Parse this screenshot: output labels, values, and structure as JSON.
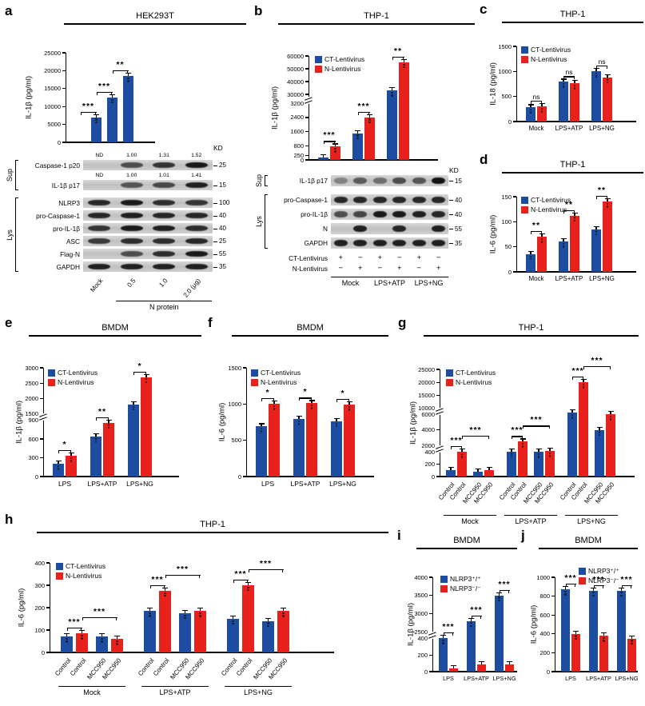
{
  "colors": {
    "blue": "#1c4da0",
    "red": "#e8211d"
  },
  "panels": {
    "a": {
      "letter": "a",
      "title": "HEK293T",
      "blot": {
        "kd": "KD",
        "sections": [
          {
            "label": "Sup",
            "rows": [
              0,
              1
            ]
          },
          {
            "label": "Lys",
            "rows": [
              2,
              7
            ]
          }
        ],
        "rows": [
          {
            "label": "Caspase-1 p20",
            "marker": "25",
            "numbers": [
              "ND",
              "1.00",
              "1.31",
              "1.52"
            ],
            "bands": [
              0,
              0.55,
              0.75,
              0.95
            ]
          },
          {
            "label": "IL-1β p17",
            "marker": "15",
            "numbers": [
              "ND",
              "1.00",
              "1.01",
              "1.41"
            ],
            "bands": [
              0,
              0.5,
              0.6,
              0.9
            ]
          },
          {
            "label": "NLRP3",
            "marker": "100",
            "bands": [
              0.85,
              0.95,
              0.8,
              0.75
            ]
          },
          {
            "label": "pro-Caspase-1",
            "marker": "40",
            "bands": [
              0.85,
              0.9,
              0.85,
              0.85
            ]
          },
          {
            "label": "pro-IL-1β",
            "marker": "40",
            "bands": [
              0.75,
              0.95,
              0.9,
              0.8
            ]
          },
          {
            "label": "ASC",
            "marker": "25",
            "bands": [
              0.7,
              0.8,
              0.8,
              0.85
            ]
          },
          {
            "label": "Flag-N",
            "marker": "55",
            "bands": [
              0,
              0.55,
              0.8,
              0.95
            ]
          },
          {
            "label": "GAPDH",
            "marker": "35",
            "bands": [
              0.9,
              0.9,
              0.9,
              0.9
            ]
          }
        ],
        "lane_labels": [
          "Mock",
          "0.5",
          "1.0",
          "2.0 (μg)"
        ],
        "bottom_bracket": {
          "label": "N protein",
          "from": 1,
          "to": 3
        }
      }
    },
    "b": {
      "letter": "b",
      "title": "THP-1",
      "blot": {
        "kd": "KD",
        "sections": [
          {
            "label": "Sup",
            "rows": [
              0,
              0
            ]
          },
          {
            "label": "Lys",
            "rows": [
              1,
              4
            ]
          }
        ],
        "rows": [
          {
            "label": "IL-1β p17",
            "marker": "15",
            "bands": [
              0.15,
              0.45,
              0.3,
              0.55,
              0.5,
              1.0
            ]
          },
          {
            "label": "pro-Caspase-1",
            "marker": "40",
            "bands": [
              0.85,
              0.85,
              0.85,
              0.85,
              0.85,
              0.85
            ]
          },
          {
            "label": "pro-IL-1β",
            "marker": "40",
            "bands": [
              0.55,
              0.6,
              0.95,
              0.95,
              0.9,
              0.85
            ]
          },
          {
            "label": "N",
            "marker": "55",
            "bands": [
              0,
              0.9,
              0,
              0.85,
              0,
              0.9
            ]
          },
          {
            "label": "GAPDH",
            "marker": "35",
            "bands": [
              0.9,
              0.9,
              0.9,
              0.9,
              0.9,
              0.9
            ]
          }
        ],
        "pm_rows": [
          {
            "label": "CT-Lentivirus",
            "values": [
              "+",
              "−",
              "+",
              "−",
              "+",
              "−"
            ]
          },
          {
            "label": "N-Lentivirus",
            "values": [
              "−",
              "+",
              "−",
              "+",
              "−",
              "+"
            ]
          }
        ],
        "group_labels": [
          "Mock",
          "LPS+ATP",
          "LPS+NG"
        ]
      }
    },
    "c": {
      "letter": "c",
      "title": "THP-1"
    },
    "d": {
      "letter": "d",
      "title": "THP-1"
    },
    "e": {
      "letter": "e",
      "title": "BMDM"
    },
    "f": {
      "letter": "f",
      "title": "BMDM"
    },
    "g": {
      "letter": "g",
      "title": "THP-1"
    },
    "h": {
      "letter": "h",
      "title": "THP-1"
    },
    "i": {
      "letter": "i",
      "title": "BMDM"
    },
    "j": {
      "letter": "j",
      "title": "BMDM"
    }
  },
  "chart_data": [
    {
      "id": "a",
      "type": "bar",
      "title": "HEK293T",
      "ylabel": "IL-1β (pg/ml)",
      "categories": [
        "Mock",
        "0.5",
        "1.0",
        "2.0"
      ],
      "series": [
        {
          "name": "N protein",
          "color": "blue",
          "values": [
            0,
            7000,
            12500,
            18500
          ]
        }
      ],
      "ticks": [
        0,
        5000,
        10000,
        15000,
        20000,
        25000
      ],
      "segments": [
        {
          "min": 0,
          "max": 25000,
          "frac": 1
        }
      ],
      "sig": [
        {
          "bars": [
            0,
            1
          ],
          "label": "***"
        },
        {
          "bars": [
            1,
            2
          ],
          "label": "***"
        },
        {
          "bars": [
            2,
            3
          ],
          "label": "**"
        }
      ]
    },
    {
      "id": "b",
      "type": "bar",
      "title": "THP-1",
      "ylabel": "IL-1β (pg/ml)",
      "categories": [
        "Mock",
        "LPS+ATP",
        "LPS+NG"
      ],
      "series": [
        {
          "name": "CT-Lentivirus",
          "color": "blue",
          "values": [
            120,
            1500,
            33000
          ]
        },
        {
          "name": "N-Lentivirus",
          "color": "red",
          "values": [
            750,
            2400,
            55000
          ]
        }
      ],
      "ticks": [
        0,
        250,
        800,
        1600,
        2400,
        3200,
        30000,
        40000,
        50000,
        60000
      ],
      "segments": [
        {
          "min": 0,
          "max": 3200,
          "frac": 0.58
        },
        {
          "min": 28000,
          "max": 60000,
          "frac": 0.42
        }
      ],
      "sig": [
        {
          "bars": [
            0,
            1
          ],
          "label": "***"
        },
        {
          "bars": [
            2,
            3
          ],
          "label": "***"
        },
        {
          "bars": [
            4,
            5
          ],
          "label": "**"
        }
      ]
    },
    {
      "id": "c",
      "type": "bar",
      "title": "THP-1",
      "ylabel": "IL-18 (pg/ml)",
      "categories": [
        "Mock",
        "LPS+ATP",
        "LPS+NG"
      ],
      "series": [
        {
          "name": "CT-Lentivirus",
          "color": "blue",
          "values": [
            280,
            790,
            1000
          ]
        },
        {
          "name": "N-Lentivirus",
          "color": "red",
          "values": [
            300,
            760,
            880
          ]
        }
      ],
      "ticks": [
        0,
        500,
        1000,
        1500
      ],
      "segments": [
        {
          "min": 0,
          "max": 1500,
          "frac": 1
        }
      ],
      "sig": [
        {
          "bars": [
            0,
            1
          ],
          "label": "ns"
        },
        {
          "bars": [
            2,
            3
          ],
          "label": "ns"
        },
        {
          "bars": [
            4,
            5
          ],
          "label": "ns"
        }
      ]
    },
    {
      "id": "d",
      "type": "bar",
      "title": "THP-1",
      "ylabel": "IL-6 (pg/ml)",
      "categories": [
        "Mock",
        "LPS+ATP",
        "LPS+NG"
      ],
      "series": [
        {
          "name": "CT-Lentivirus",
          "color": "blue",
          "values": [
            35,
            60,
            85
          ]
        },
        {
          "name": "N-Lentivirus",
          "color": "red",
          "values": [
            70,
            112,
            140
          ]
        }
      ],
      "ticks": [
        0,
        50,
        100,
        150
      ],
      "segments": [
        {
          "min": 0,
          "max": 150,
          "frac": 1
        }
      ],
      "sig": [
        {
          "bars": [
            0,
            1
          ],
          "label": "**"
        },
        {
          "bars": [
            2,
            3
          ],
          "label": "**"
        },
        {
          "bars": [
            4,
            5
          ],
          "label": "**"
        }
      ]
    },
    {
      "id": "e",
      "type": "bar",
      "title": "BMDM",
      "ylabel": "IL-1β (pg/ml)",
      "categories": [
        "LPS",
        "LPS+ATP",
        "LPS+NG"
      ],
      "series": [
        {
          "name": "CT-Lentivirus",
          "color": "blue",
          "values": [
            200,
            640,
            1800
          ]
        },
        {
          "name": "N-Lentivirus",
          "color": "red",
          "values": [
            330,
            860,
            2700
          ]
        }
      ],
      "ticks": [
        0,
        300,
        600,
        900,
        1500,
        2000,
        2500,
        3000
      ],
      "segments": [
        {
          "min": 0,
          "max": 900,
          "frac": 0.55
        },
        {
          "min": 1500,
          "max": 3000,
          "frac": 0.45
        }
      ],
      "sig": [
        {
          "bars": [
            0,
            1
          ],
          "label": "*"
        },
        {
          "bars": [
            2,
            3
          ],
          "label": "**"
        },
        {
          "bars": [
            4,
            5
          ],
          "label": "*"
        }
      ]
    },
    {
      "id": "f",
      "type": "bar",
      "title": "BMDM",
      "ylabel": "IL-6 (pg/ml)",
      "categories": [
        "LPS",
        "LPS+ATP",
        "LPS+NG"
      ],
      "series": [
        {
          "name": "CT-Lentivirus",
          "color": "blue",
          "values": [
            690,
            790,
            760
          ]
        },
        {
          "name": "N-Lentivirus",
          "color": "red",
          "values": [
            1000,
            1010,
            990
          ]
        }
      ],
      "ticks": [
        0,
        500,
        1000,
        1500
      ],
      "segments": [
        {
          "min": 0,
          "max": 1500,
          "frac": 1
        }
      ],
      "sig": [
        {
          "bars": [
            0,
            1
          ],
          "label": "*"
        },
        {
          "bars": [
            2,
            3
          ],
          "label": "*"
        },
        {
          "bars": [
            4,
            5
          ],
          "label": "*"
        }
      ]
    },
    {
      "id": "g",
      "type": "bar",
      "title": "THP-1",
      "ylabel": "IL-1β (pg/ml)",
      "categories": [
        {
          "label": "Control",
          "block": 0
        },
        {
          "label": "MCC950",
          "block": 0
        },
        {
          "label": "Control",
          "block": 1
        },
        {
          "label": "MCC950",
          "block": 1
        },
        {
          "label": "Control",
          "block": 2
        },
        {
          "label": "MCC950",
          "block": 2
        }
      ],
      "blocks": [
        "Mock",
        "LPS+ATP",
        "LPS+NG"
      ],
      "series": [
        {
          "name": "CT-Lentivirus",
          "color": "blue",
          "values": [
            100,
            80,
            500,
            400,
            7000,
            4000
          ]
        },
        {
          "name": "N-Lentivirus",
          "color": "red",
          "values": [
            400,
            100,
            2500,
            600,
            20000,
            6000
          ]
        }
      ],
      "ticks": [
        0,
        200,
        400,
        2000,
        4000,
        6000,
        10000,
        15000,
        20000,
        25000
      ],
      "segments": [
        {
          "min": 0,
          "max": 400,
          "frac": 0.26
        },
        {
          "min": 2000,
          "max": 6000,
          "frac": 0.33
        },
        {
          "min": 10000,
          "max": 25000,
          "frac": 0.41
        }
      ],
      "sig": [
        {
          "bars": [
            0,
            1
          ],
          "label": "***"
        },
        {
          "bars": [
            1,
            3
          ],
          "label": "***",
          "row": 1
        },
        {
          "bars": [
            4,
            5
          ],
          "label": "***"
        },
        {
          "bars": [
            5,
            7
          ],
          "label": "***",
          "row": 1
        },
        {
          "bars": [
            8,
            9
          ],
          "label": "***"
        },
        {
          "bars": [
            9,
            11
          ],
          "label": "***",
          "row": 1
        }
      ]
    },
    {
      "id": "h",
      "type": "bar",
      "title": "THP-1",
      "ylabel": "IL-6 (pg/ml)",
      "categories": [
        {
          "label": "Control",
          "block": 0
        },
        {
          "label": "MCC950",
          "block": 0
        },
        {
          "label": "Control",
          "block": 1
        },
        {
          "label": "MCC950",
          "block": 1
        },
        {
          "label": "Control",
          "block": 2
        },
        {
          "label": "MCC950",
          "block": 2
        }
      ],
      "blocks": [
        "Mock",
        "LPS+ATP",
        "LPS+NG"
      ],
      "series": [
        {
          "name": "CT-Lentivirus",
          "color": "blue",
          "values": [
            70,
            70,
            185,
            175,
            150,
            140
          ]
        },
        {
          "name": "N-Lentivirus",
          "color": "red",
          "values": [
            85,
            60,
            275,
            185,
            300,
            185
          ]
        }
      ],
      "ticks": [
        0,
        100,
        200,
        300,
        400
      ],
      "segments": [
        {
          "min": 0,
          "max": 400,
          "frac": 1
        }
      ],
      "sig": [
        {
          "bars": [
            0,
            1
          ],
          "label": "***"
        },
        {
          "bars": [
            1,
            3
          ],
          "label": "***",
          "row": 1
        },
        {
          "bars": [
            4,
            5
          ],
          "label": "***"
        },
        {
          "bars": [
            5,
            7
          ],
          "label": "***",
          "row": 1
        },
        {
          "bars": [
            8,
            9
          ],
          "label": "***"
        },
        {
          "bars": [
            9,
            11
          ],
          "label": "***",
          "row": 1
        }
      ]
    },
    {
      "id": "i",
      "type": "bar",
      "title": "BMDM",
      "ylabel": "IL-1β (pg/ml)",
      "categories": [
        "LPS",
        "LPS+ATP",
        "LPS+NG"
      ],
      "series": [
        {
          "name": "NLRP3⁺/⁺",
          "color": "blue",
          "values": [
            400,
            2800,
            3500
          ]
        },
        {
          "name": "NLRP3⁻/⁻",
          "color": "red",
          "values": [
            40,
            90,
            90
          ]
        }
      ],
      "ticks": [
        0,
        200,
        400,
        2500,
        3000,
        3500,
        4000
      ],
      "segments": [
        {
          "min": 0,
          "max": 400,
          "frac": 0.38
        },
        {
          "min": 2500,
          "max": 4000,
          "frac": 0.62
        }
      ],
      "sig": [
        {
          "bars": [
            0,
            1
          ],
          "label": "***"
        },
        {
          "bars": [
            2,
            3
          ],
          "label": "***"
        },
        {
          "bars": [
            4,
            5
          ],
          "label": "***"
        }
      ]
    },
    {
      "id": "j",
      "type": "bar",
      "title": "BMDM",
      "ylabel": "IL-6 (pg/ml)",
      "categories": [
        "LPS",
        "LPS+ATP",
        "LPS+NG"
      ],
      "series": [
        {
          "name": "NLRP3⁺/⁺",
          "color": "blue",
          "values": [
            870,
            860,
            860
          ]
        },
        {
          "name": "NLRP3⁻/⁻",
          "color": "red",
          "values": [
            400,
            380,
            350
          ]
        }
      ],
      "ticks": [
        0,
        200,
        400,
        600,
        800,
        1000
      ],
      "segments": [
        {
          "min": 0,
          "max": 1000,
          "frac": 1
        }
      ],
      "sig": [
        {
          "bars": [
            0,
            1
          ],
          "label": "***"
        },
        {
          "bars": [
            2,
            3
          ],
          "label": "***"
        },
        {
          "bars": [
            4,
            5
          ],
          "label": "***"
        }
      ]
    }
  ]
}
